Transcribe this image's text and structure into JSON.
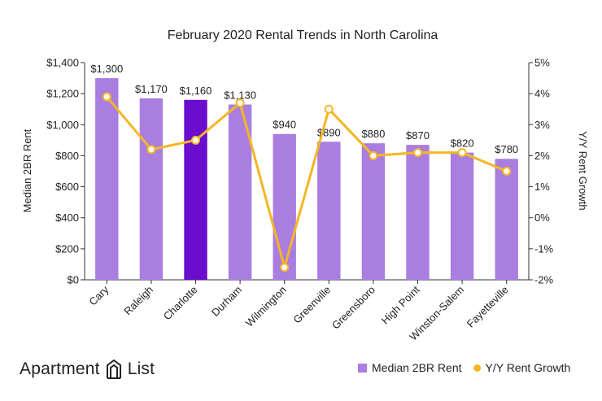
{
  "chart_data": {
    "type": "bar",
    "title": "February 2020 Rental Trends in North Carolina",
    "categories": [
      "Cary",
      "Raleigh",
      "Charlotte",
      "Durham",
      "Wilmington",
      "Greenville",
      "Greensboro",
      "High Point",
      "Winston-Salem",
      "Fayetteville"
    ],
    "series": [
      {
        "name": "Median 2BR Rent",
        "type": "bar",
        "axis": "left",
        "values": [
          1300,
          1170,
          1160,
          1130,
          940,
          890,
          880,
          870,
          820,
          780
        ],
        "data_labels": [
          "$1,300",
          "$1,170",
          "$1,160",
          "$1,130",
          "$940",
          "$890",
          "$880",
          "$870",
          "$820",
          "$780"
        ],
        "color": "#a97ee0",
        "highlight_index": 2,
        "highlight_color": "#6a0dcc"
      },
      {
        "name": "Y/Y Rent Growth",
        "type": "line",
        "axis": "right",
        "values": [
          3.9,
          2.2,
          2.5,
          3.7,
          -1.6,
          3.5,
          2.0,
          2.1,
          2.1,
          1.5
        ],
        "color": "#f5b623"
      }
    ],
    "ylabel": "Median 2BR Rent",
    "ylim": [
      0,
      1400
    ],
    "yticks": [
      0,
      200,
      400,
      600,
      800,
      1000,
      1200,
      1400
    ],
    "ytick_labels": [
      "$0",
      "$200",
      "$400",
      "$600",
      "$800",
      "$1,000",
      "$1,200",
      "$1,400"
    ],
    "y2label": "Y/Y Rent Growth",
    "y2lim": [
      -2,
      5
    ],
    "y2ticks": [
      -2,
      -1,
      0,
      1,
      2,
      3,
      4,
      5
    ],
    "y2tick_labels": [
      "-2%",
      "-1%",
      "0%",
      "1%",
      "2%",
      "3%",
      "4%",
      "5%"
    ],
    "legend": "bottom-right",
    "grid": false
  },
  "brand": {
    "word1": "Apartment",
    "word2": "List",
    "logo_icon": "apartment-list-logo-icon"
  }
}
